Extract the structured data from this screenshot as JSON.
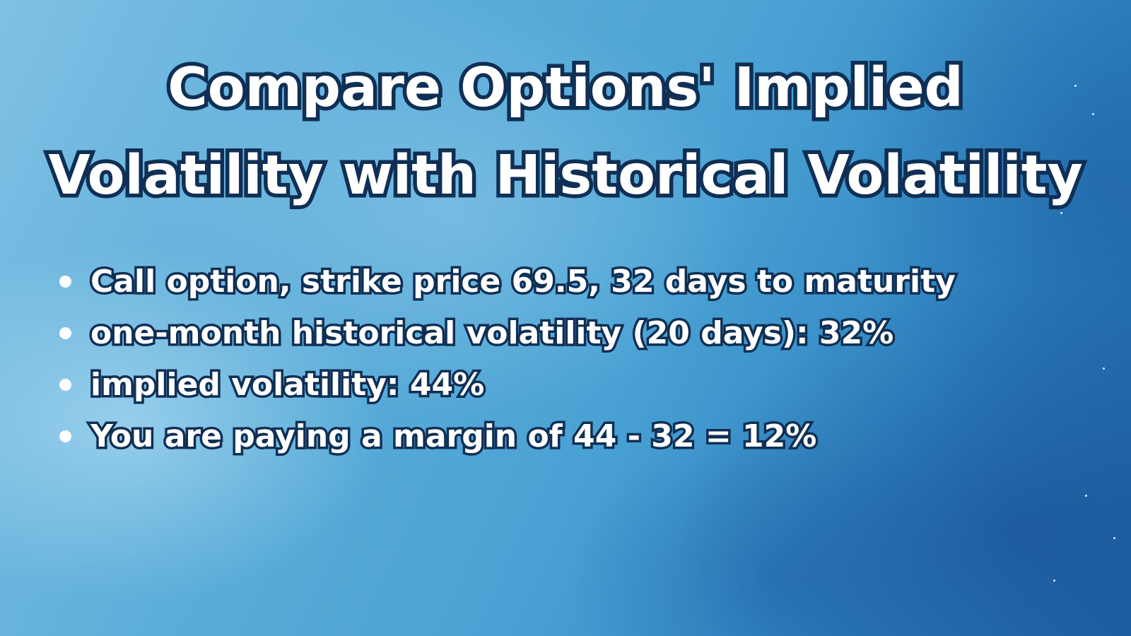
{
  "slide": {
    "title_lines": [
      "Compare Options' Implied",
      "Volatility with Historical Volatility"
    ],
    "bullets": [
      "Call option, strike price 69.5, 32 days to maturity",
      "one-month historical volatility (20 days): 32%",
      "implied volatility: 44%",
      "You are paying a margin of 44 - 32 = 12%"
    ]
  },
  "colors": {
    "text": "#ffffff",
    "text_outline": "#0f2f55",
    "background_light": "#7fc0e4",
    "background_dark": "#1e66a8"
  }
}
